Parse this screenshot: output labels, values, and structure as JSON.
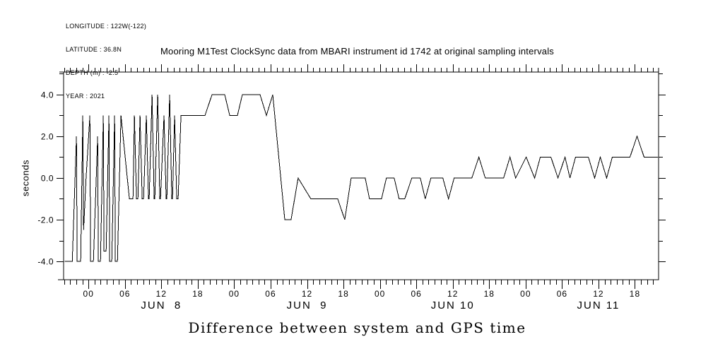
{
  "metadata_block": {
    "longitude": "LONGITUDE : 122W(-122)",
    "latitude": "LATITUDE : 36.8N",
    "depth": "DEPTH (m) : -2.5",
    "year": "YEAR : 2021"
  },
  "chart_data": {
    "type": "line",
    "title": "Mooring M1Test ClockSync data from MBARI instrument id 1742 at original sampling intervals",
    "footer_title": "Difference between system and GPS time",
    "ylabel": "seconds",
    "line_color": "#000000",
    "background_color": "#ffffff",
    "ylim": [
      -4.88,
      5.08
    ],
    "xlim_hours": [
      -4.1,
      93.9
    ],
    "grid": "off",
    "y_major_ticks": [
      {
        "value": -4,
        "label": "-4.0"
      },
      {
        "value": -2,
        "label": "-2.0"
      },
      {
        "value": 0,
        "label": "0.0"
      },
      {
        "value": 2,
        "label": "2.0"
      },
      {
        "value": 4,
        "label": "4.0"
      }
    ],
    "y_minor_tick_values": [
      -3,
      -1,
      1,
      3,
      5
    ],
    "x_minor_tick_step_hours": 1,
    "x_major_ticks": [
      {
        "hour": 0,
        "label": "00"
      },
      {
        "hour": 6,
        "label": "06"
      },
      {
        "hour": 12,
        "label": "12"
      },
      {
        "hour": 18,
        "label": "18"
      },
      {
        "hour": 24,
        "label": "00"
      },
      {
        "hour": 30,
        "label": "06"
      },
      {
        "hour": 36,
        "label": "12"
      },
      {
        "hour": 42,
        "label": "18"
      },
      {
        "hour": 48,
        "label": "00"
      },
      {
        "hour": 54,
        "label": "06"
      },
      {
        "hour": 60,
        "label": "12"
      },
      {
        "hour": 66,
        "label": "18"
      },
      {
        "hour": 72,
        "label": "00"
      },
      {
        "hour": 78,
        "label": "06"
      },
      {
        "hour": 84,
        "label": "12"
      },
      {
        "hour": 90,
        "label": "18"
      }
    ],
    "date_ticks": [
      {
        "hour": 12,
        "label": "JUN  8"
      },
      {
        "hour": 36,
        "label": "JUN  9"
      },
      {
        "hour": 60,
        "label": "JUN 10"
      },
      {
        "hour": 84,
        "label": "JUN 11"
      }
    ],
    "points_hours_seconds": [
      [
        -3.95,
        -4
      ],
      [
        -2.67,
        -4
      ],
      [
        -1.98,
        2
      ],
      [
        -1.86,
        -4
      ],
      [
        -1.28,
        -4
      ],
      [
        -0.93,
        3
      ],
      [
        -0.81,
        -2.5
      ],
      [
        -0.4,
        0
      ],
      [
        0.23,
        3
      ],
      [
        0.35,
        -4
      ],
      [
        0.81,
        -4
      ],
      [
        1.51,
        2
      ],
      [
        1.63,
        -4
      ],
      [
        1.98,
        -4
      ],
      [
        2.44,
        3
      ],
      [
        2.56,
        -3.5
      ],
      [
        2.91,
        -3.5
      ],
      [
        3.37,
        3
      ],
      [
        3.49,
        -4
      ],
      [
        3.84,
        -4
      ],
      [
        4.3,
        3
      ],
      [
        4.42,
        -4
      ],
      [
        4.77,
        -4
      ],
      [
        5.35,
        3
      ],
      [
        6.74,
        -1
      ],
      [
        7.33,
        -1
      ],
      [
        7.56,
        3
      ],
      [
        7.91,
        -1
      ],
      [
        8.14,
        -1
      ],
      [
        8.49,
        3
      ],
      [
        8.84,
        -1
      ],
      [
        9.07,
        -1
      ],
      [
        9.53,
        3
      ],
      [
        9.88,
        -1
      ],
      [
        10.0,
        -1
      ],
      [
        10.47,
        4
      ],
      [
        10.81,
        -1
      ],
      [
        10.93,
        -1
      ],
      [
        11.4,
        4
      ],
      [
        11.74,
        -1
      ],
      [
        11.86,
        -1
      ],
      [
        12.44,
        3
      ],
      [
        12.79,
        -1
      ],
      [
        12.91,
        -1
      ],
      [
        13.37,
        4
      ],
      [
        13.72,
        -1
      ],
      [
        13.84,
        -1
      ],
      [
        14.19,
        3
      ],
      [
        14.53,
        -1
      ],
      [
        14.77,
        -1
      ],
      [
        15.23,
        3
      ],
      [
        19.19,
        3
      ],
      [
        20.35,
        4
      ],
      [
        22.44,
        4
      ],
      [
        23.26,
        3
      ],
      [
        24.53,
        3
      ],
      [
        25.35,
        4
      ],
      [
        28.26,
        4
      ],
      [
        29.3,
        3
      ],
      [
        30.35,
        4
      ],
      [
        32.33,
        -2
      ],
      [
        33.37,
        -2
      ],
      [
        34.53,
        0
      ],
      [
        36.63,
        -1
      ],
      [
        41.05,
        -1
      ],
      [
        42.21,
        -2
      ],
      [
        43.26,
        0
      ],
      [
        45.58,
        0
      ],
      [
        46.28,
        -1
      ],
      [
        48.26,
        -1
      ],
      [
        49.07,
        0
      ],
      [
        50.35,
        0
      ],
      [
        51.16,
        -1
      ],
      [
        52.09,
        -1
      ],
      [
        53.26,
        0
      ],
      [
        54.65,
        0
      ],
      [
        55.47,
        -1
      ],
      [
        56.4,
        0
      ],
      [
        58.37,
        0
      ],
      [
        59.3,
        -1
      ],
      [
        60.23,
        0
      ],
      [
        63.14,
        0
      ],
      [
        64.3,
        1
      ],
      [
        65.35,
        0
      ],
      [
        68.37,
        0
      ],
      [
        69.42,
        1
      ],
      [
        70.35,
        0
      ],
      [
        72.09,
        1
      ],
      [
        73.49,
        0
      ],
      [
        74.42,
        1
      ],
      [
        76.16,
        1
      ],
      [
        77.33,
        0
      ],
      [
        78.49,
        1
      ],
      [
        79.3,
        0
      ],
      [
        80.23,
        1
      ],
      [
        82.33,
        1
      ],
      [
        83.37,
        0
      ],
      [
        84.3,
        1
      ],
      [
        85.35,
        0
      ],
      [
        86.28,
        1
      ],
      [
        89.19,
        1
      ],
      [
        90.35,
        2
      ],
      [
        91.51,
        1
      ],
      [
        93.8,
        1
      ]
    ]
  }
}
